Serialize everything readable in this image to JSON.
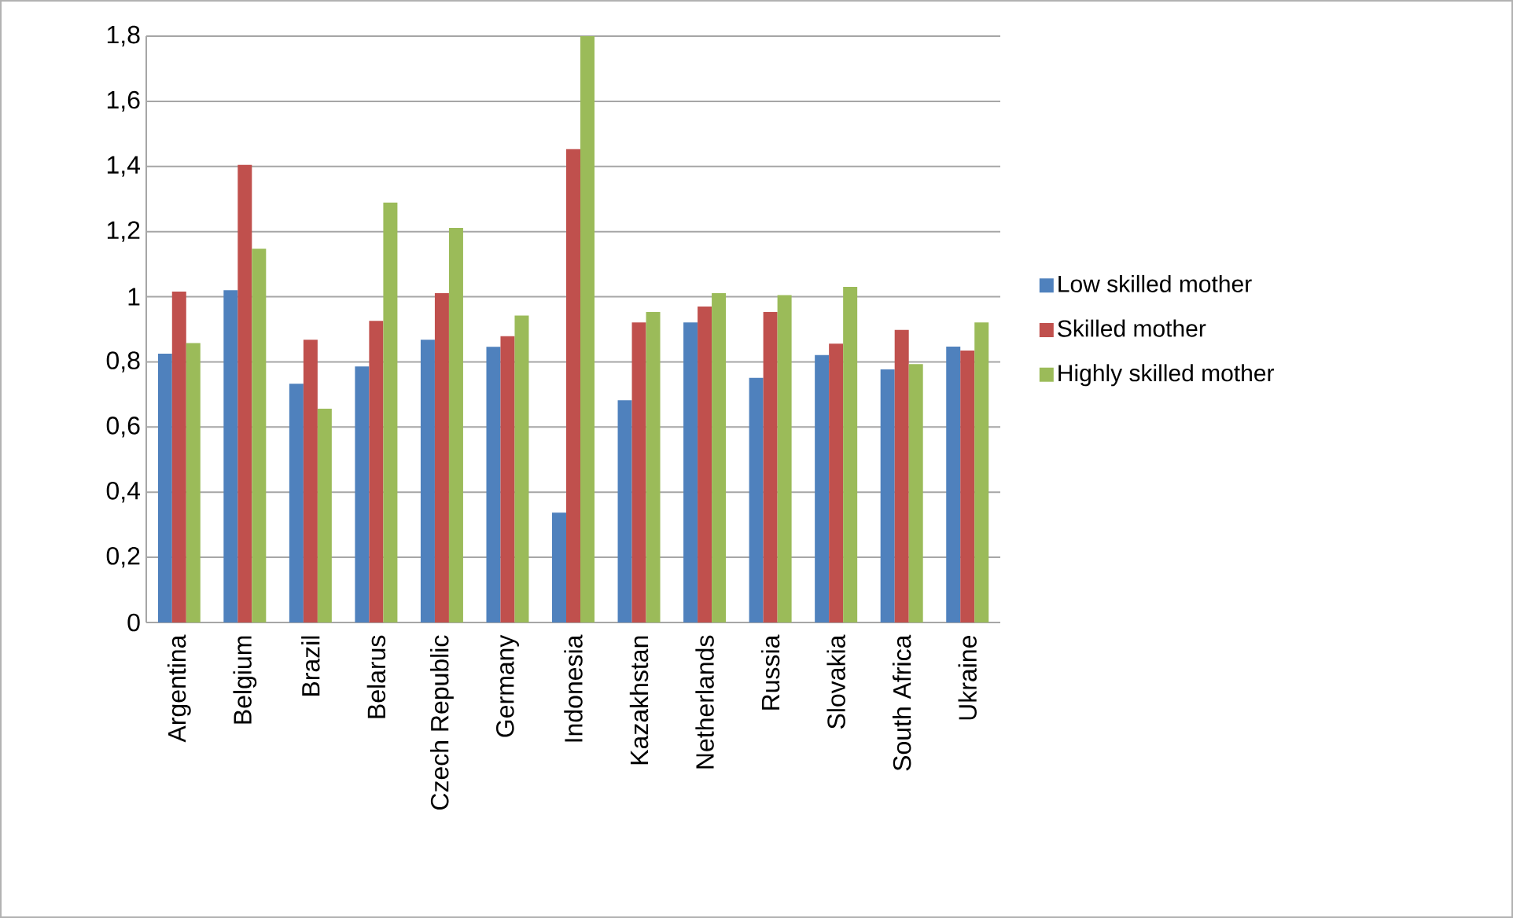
{
  "chart_data": {
    "type": "bar",
    "categories": [
      "Argentina",
      "Belgium",
      "Brazil",
      "Belarus",
      "Czech Republic",
      "Germany",
      "Indonesia",
      "Kazakhstan",
      "Netherlands",
      "Russia",
      "Slovakia",
      "South Africa",
      "Ukraine"
    ],
    "series": [
      {
        "name": "Low skilled mother",
        "color": "#4f81bd",
        "values": [
          0.825,
          1.02,
          0.733,
          0.786,
          0.868,
          0.846,
          0.337,
          0.682,
          0.921,
          0.751,
          0.821,
          0.777,
          0.847
        ]
      },
      {
        "name": "Skilled mother",
        "color": "#c0504d",
        "values": [
          1.016,
          1.405,
          0.868,
          0.926,
          1.011,
          0.879,
          1.453,
          0.921,
          0.97,
          0.953,
          0.856,
          0.898,
          0.835
        ]
      },
      {
        "name": "Highly skilled mother",
        "color": "#9bbb59",
        "values": [
          0.858,
          1.147,
          0.656,
          1.289,
          1.211,
          0.942,
          1.8,
          0.953,
          1.011,
          1.005,
          1.03,
          0.793,
          0.921
        ]
      }
    ],
    "ylim": [
      0,
      1.8
    ],
    "yticks": [
      {
        "value": 0,
        "label": "0"
      },
      {
        "value": 0.2,
        "label": "0,2"
      },
      {
        "value": 0.4,
        "label": "0,4"
      },
      {
        "value": 0.6,
        "label": "0,6"
      },
      {
        "value": 0.8,
        "label": "0,8"
      },
      {
        "value": 1,
        "label": "1"
      },
      {
        "value": 1.2,
        "label": "1,2"
      },
      {
        "value": 1.4,
        "label": "1,4"
      },
      {
        "value": 1.6,
        "label": "1,6"
      },
      {
        "value": 1.8,
        "label": "1,8"
      }
    ],
    "grid": "y",
    "legend": "right"
  }
}
